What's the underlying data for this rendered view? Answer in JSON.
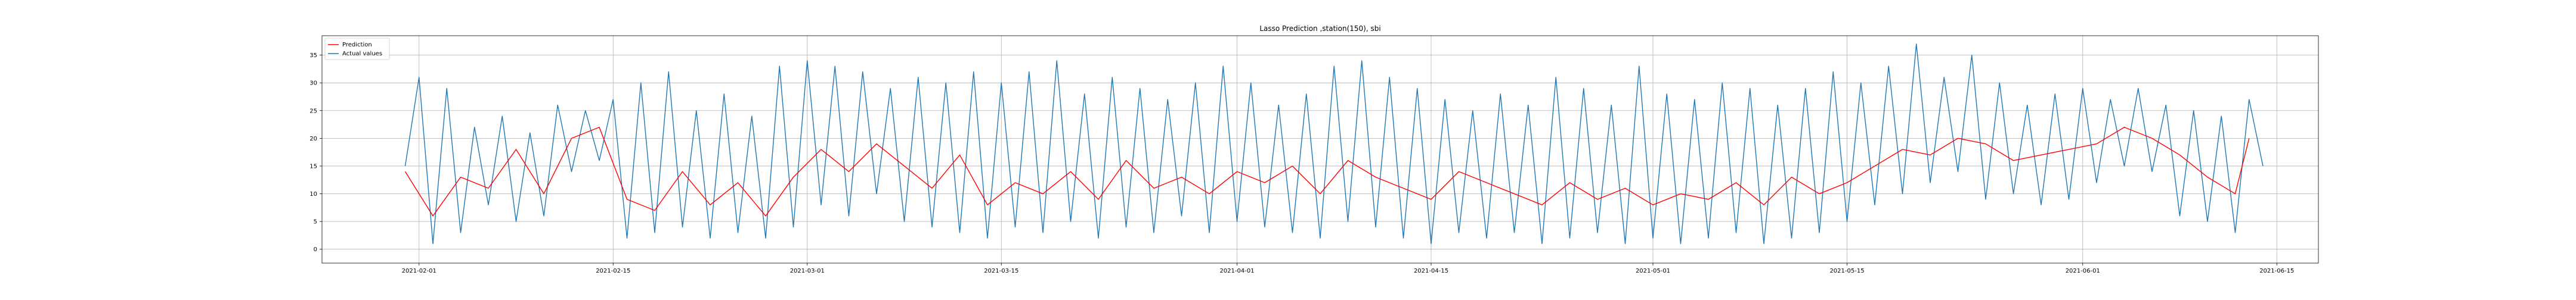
{
  "chart_data": {
    "type": "line",
    "title": "Lasso Prediction ,station(150), sbi",
    "xlabel": "",
    "ylabel": "",
    "x_range": [
      "2021-01-25",
      "2021-06-18"
    ],
    "ylim": [
      -2.5,
      38.5
    ],
    "grid": true,
    "legend_position": "top-left",
    "y_ticks": [
      0,
      5,
      10,
      15,
      20,
      25,
      30,
      35
    ],
    "x_ticks": [
      {
        "date": "2021-02-01",
        "label": "2021-02-01"
      },
      {
        "date": "2021-02-15",
        "label": "2021-02-15"
      },
      {
        "date": "2021-03-01",
        "label": "2021-03-01"
      },
      {
        "date": "2021-03-15",
        "label": "2021-03-15"
      },
      {
        "date": "2021-04-01",
        "label": "2021-04-01"
      },
      {
        "date": "2021-04-15",
        "label": "2021-04-15"
      },
      {
        "date": "2021-05-01",
        "label": "2021-05-01"
      },
      {
        "date": "2021-05-15",
        "label": "2021-05-15"
      },
      {
        "date": "2021-06-01",
        "label": "2021-06-01"
      },
      {
        "date": "2021-06-15",
        "label": "2021-06-15"
      }
    ],
    "series": [
      {
        "name": "Prediction",
        "color": "#ff0000",
        "points": [
          [
            "2021-01-31",
            14
          ],
          [
            "2021-02-02",
            6
          ],
          [
            "2021-02-04",
            13
          ],
          [
            "2021-02-06",
            11
          ],
          [
            "2021-02-08",
            18
          ],
          [
            "2021-02-10",
            10
          ],
          [
            "2021-02-12",
            20
          ],
          [
            "2021-02-14",
            22
          ],
          [
            "2021-02-16",
            9
          ],
          [
            "2021-02-18",
            7
          ],
          [
            "2021-02-20",
            14
          ],
          [
            "2021-02-22",
            8
          ],
          [
            "2021-02-24",
            12
          ],
          [
            "2021-02-26",
            6
          ],
          [
            "2021-02-28",
            13
          ],
          [
            "2021-03-02",
            18
          ],
          [
            "2021-03-04",
            14
          ],
          [
            "2021-03-06",
            19
          ],
          [
            "2021-03-08",
            15
          ],
          [
            "2021-03-10",
            11
          ],
          [
            "2021-03-12",
            17
          ],
          [
            "2021-03-14",
            8
          ],
          [
            "2021-03-16",
            12
          ],
          [
            "2021-03-18",
            10
          ],
          [
            "2021-03-20",
            14
          ],
          [
            "2021-03-22",
            9
          ],
          [
            "2021-03-24",
            16
          ],
          [
            "2021-03-26",
            11
          ],
          [
            "2021-03-28",
            13
          ],
          [
            "2021-03-30",
            10
          ],
          [
            "2021-04-01",
            14
          ],
          [
            "2021-04-03",
            12
          ],
          [
            "2021-04-05",
            15
          ],
          [
            "2021-04-07",
            10
          ],
          [
            "2021-04-09",
            16
          ],
          [
            "2021-04-11",
            13
          ],
          [
            "2021-04-13",
            11
          ],
          [
            "2021-04-15",
            9
          ],
          [
            "2021-04-17",
            14
          ],
          [
            "2021-04-19",
            12
          ],
          [
            "2021-04-21",
            10
          ],
          [
            "2021-04-23",
            8
          ],
          [
            "2021-04-25",
            12
          ],
          [
            "2021-04-27",
            9
          ],
          [
            "2021-04-29",
            11
          ],
          [
            "2021-05-01",
            8
          ],
          [
            "2021-05-03",
            10
          ],
          [
            "2021-05-05",
            9
          ],
          [
            "2021-05-07",
            12
          ],
          [
            "2021-05-09",
            8
          ],
          [
            "2021-05-11",
            13
          ],
          [
            "2021-05-13",
            10
          ],
          [
            "2021-05-15",
            12
          ],
          [
            "2021-05-17",
            15
          ],
          [
            "2021-05-19",
            18
          ],
          [
            "2021-05-21",
            17
          ],
          [
            "2021-05-23",
            20
          ],
          [
            "2021-05-25",
            19
          ],
          [
            "2021-05-27",
            16
          ],
          [
            "2021-05-29",
            17
          ],
          [
            "2021-05-31",
            18
          ],
          [
            "2021-06-02",
            19
          ],
          [
            "2021-06-04",
            22
          ],
          [
            "2021-06-06",
            20
          ],
          [
            "2021-06-08",
            17
          ],
          [
            "2021-06-10",
            13
          ],
          [
            "2021-06-12",
            10
          ],
          [
            "2021-06-13",
            20
          ]
        ]
      },
      {
        "name": "Actual values",
        "color": "#1f77b4",
        "points": [
          [
            "2021-01-31",
            15
          ],
          [
            "2021-02-01",
            31
          ],
          [
            "2021-02-02",
            1
          ],
          [
            "2021-02-03",
            29
          ],
          [
            "2021-02-04",
            3
          ],
          [
            "2021-02-05",
            22
          ],
          [
            "2021-02-06",
            8
          ],
          [
            "2021-02-07",
            24
          ],
          [
            "2021-02-08",
            5
          ],
          [
            "2021-02-09",
            21
          ],
          [
            "2021-02-10",
            6
          ],
          [
            "2021-02-11",
            26
          ],
          [
            "2021-02-12",
            14
          ],
          [
            "2021-02-13",
            25
          ],
          [
            "2021-02-14",
            16
          ],
          [
            "2021-02-15",
            27
          ],
          [
            "2021-02-16",
            2
          ],
          [
            "2021-02-17",
            30
          ],
          [
            "2021-02-18",
            3
          ],
          [
            "2021-02-19",
            32
          ],
          [
            "2021-02-20",
            4
          ],
          [
            "2021-02-21",
            25
          ],
          [
            "2021-02-22",
            2
          ],
          [
            "2021-02-23",
            28
          ],
          [
            "2021-02-24",
            3
          ],
          [
            "2021-02-25",
            24
          ],
          [
            "2021-02-26",
            2
          ],
          [
            "2021-02-27",
            33
          ],
          [
            "2021-02-28",
            4
          ],
          [
            "2021-03-01",
            34
          ],
          [
            "2021-03-02",
            8
          ],
          [
            "2021-03-03",
            33
          ],
          [
            "2021-03-04",
            6
          ],
          [
            "2021-03-05",
            32
          ],
          [
            "2021-03-06",
            10
          ],
          [
            "2021-03-07",
            29
          ],
          [
            "2021-03-08",
            5
          ],
          [
            "2021-03-09",
            31
          ],
          [
            "2021-03-10",
            4
          ],
          [
            "2021-03-11",
            30
          ],
          [
            "2021-03-12",
            3
          ],
          [
            "2021-03-13",
            32
          ],
          [
            "2021-03-14",
            2
          ],
          [
            "2021-03-15",
            30
          ],
          [
            "2021-03-16",
            4
          ],
          [
            "2021-03-17",
            32
          ],
          [
            "2021-03-18",
            3
          ],
          [
            "2021-03-19",
            34
          ],
          [
            "2021-03-20",
            5
          ],
          [
            "2021-03-21",
            28
          ],
          [
            "2021-03-22",
            2
          ],
          [
            "2021-03-23",
            31
          ],
          [
            "2021-03-24",
            4
          ],
          [
            "2021-03-25",
            29
          ],
          [
            "2021-03-26",
            3
          ],
          [
            "2021-03-27",
            27
          ],
          [
            "2021-03-28",
            6
          ],
          [
            "2021-03-29",
            30
          ],
          [
            "2021-03-30",
            3
          ],
          [
            "2021-03-31",
            33
          ],
          [
            "2021-04-01",
            5
          ],
          [
            "2021-04-02",
            30
          ],
          [
            "2021-04-03",
            4
          ],
          [
            "2021-04-04",
            26
          ],
          [
            "2021-04-05",
            3
          ],
          [
            "2021-04-06",
            28
          ],
          [
            "2021-04-07",
            2
          ],
          [
            "2021-04-08",
            33
          ],
          [
            "2021-04-09",
            5
          ],
          [
            "2021-04-10",
            34
          ],
          [
            "2021-04-11",
            4
          ],
          [
            "2021-04-12",
            31
          ],
          [
            "2021-04-13",
            2
          ],
          [
            "2021-04-14",
            29
          ],
          [
            "2021-04-15",
            1
          ],
          [
            "2021-04-16",
            27
          ],
          [
            "2021-04-17",
            3
          ],
          [
            "2021-04-18",
            25
          ],
          [
            "2021-04-19",
            2
          ],
          [
            "2021-04-20",
            28
          ],
          [
            "2021-04-21",
            3
          ],
          [
            "2021-04-22",
            26
          ],
          [
            "2021-04-23",
            1
          ],
          [
            "2021-04-24",
            31
          ],
          [
            "2021-04-25",
            2
          ],
          [
            "2021-04-26",
            29
          ],
          [
            "2021-04-27",
            3
          ],
          [
            "2021-04-28",
            26
          ],
          [
            "2021-04-29",
            1
          ],
          [
            "2021-04-30",
            33
          ],
          [
            "2021-05-01",
            2
          ],
          [
            "2021-05-02",
            28
          ],
          [
            "2021-05-03",
            1
          ],
          [
            "2021-05-04",
            27
          ],
          [
            "2021-05-05",
            2
          ],
          [
            "2021-05-06",
            30
          ],
          [
            "2021-05-07",
            3
          ],
          [
            "2021-05-08",
            29
          ],
          [
            "2021-05-09",
            1
          ],
          [
            "2021-05-10",
            26
          ],
          [
            "2021-05-11",
            2
          ],
          [
            "2021-05-12",
            29
          ],
          [
            "2021-05-13",
            3
          ],
          [
            "2021-05-14",
            32
          ],
          [
            "2021-05-15",
            5
          ],
          [
            "2021-05-16",
            30
          ],
          [
            "2021-05-17",
            8
          ],
          [
            "2021-05-18",
            33
          ],
          [
            "2021-05-19",
            10
          ],
          [
            "2021-05-20",
            37
          ],
          [
            "2021-05-21",
            12
          ],
          [
            "2021-05-22",
            31
          ],
          [
            "2021-05-23",
            14
          ],
          [
            "2021-05-24",
            35
          ],
          [
            "2021-05-25",
            9
          ],
          [
            "2021-05-26",
            30
          ],
          [
            "2021-05-27",
            10
          ],
          [
            "2021-05-28",
            26
          ],
          [
            "2021-05-29",
            8
          ],
          [
            "2021-05-30",
            28
          ],
          [
            "2021-05-31",
            9
          ],
          [
            "2021-06-01",
            29
          ],
          [
            "2021-06-02",
            12
          ],
          [
            "2021-06-03",
            27
          ],
          [
            "2021-06-04",
            15
          ],
          [
            "2021-06-05",
            29
          ],
          [
            "2021-06-06",
            14
          ],
          [
            "2021-06-07",
            26
          ],
          [
            "2021-06-08",
            6
          ],
          [
            "2021-06-09",
            25
          ],
          [
            "2021-06-10",
            5
          ],
          [
            "2021-06-11",
            24
          ],
          [
            "2021-06-12",
            3
          ],
          [
            "2021-06-13",
            27
          ],
          [
            "2021-06-14",
            15
          ]
        ]
      }
    ]
  }
}
